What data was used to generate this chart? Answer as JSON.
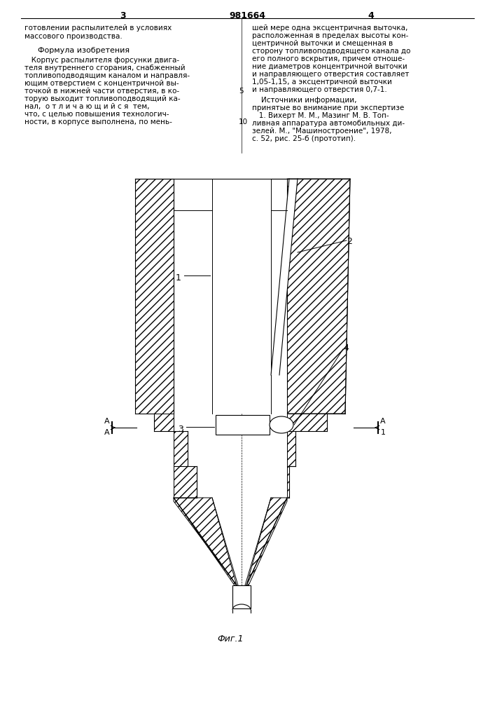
{
  "page_width": 7.07,
  "page_height": 10.0,
  "bg_color": "#ffffff",
  "text_color": "#000000",
  "line_color": "#000000",
  "page_number_left": "3",
  "page_number_center": "981664",
  "page_number_right": "4",
  "left_column_text": [
    "готовлении распылителей в условиях",
    "массового производства."
  ],
  "formula_header": "Формула изобретения",
  "left_body_text": [
    "   Корпус распылителя форсунки двига-",
    "теля внутреннего сгорания, снабженный",
    "топливоподводящим каналом и направля-",
    "ющим отверстием с концентричной вы-",
    "точкой в нижней части отверстия, в ко-",
    "торую выходит топливоподводящий ка-",
    "нал,  о т л и ч а ю щ и й с я  тем,",
    "что, с целью повышения технологич-",
    "ности, в корпусе выполнена, по мень-"
  ],
  "right_column_text": [
    "шей мере одна эксцентричная выточка,",
    "расположенная в пределах высоты кон-",
    "центричной выточки и смещенная в",
    "сторону топливоподводящего канала до",
    "его полного вскрытия, причем отноше-",
    "ние диаметров концентричной выточки",
    "и направляющего отверстия составляет",
    "1,05-1,15, а эксцентричной выточки",
    "и направляющего отверстия 0,7-1."
  ],
  "sources_header": "    Источники информации,",
  "sources_text": [
    "принятые во внимание при экспертизе",
    "   1. Вихерт М. М., Мазинг М. В. Топ-",
    "ливная аппаратура автомобильных ди-",
    "зелей. М., \"Машиностроение\", 1978,",
    "с. 52, рис. 25-б (прототип)."
  ],
  "fig_label": "Фиг.1",
  "num5": "5",
  "num10": "10"
}
